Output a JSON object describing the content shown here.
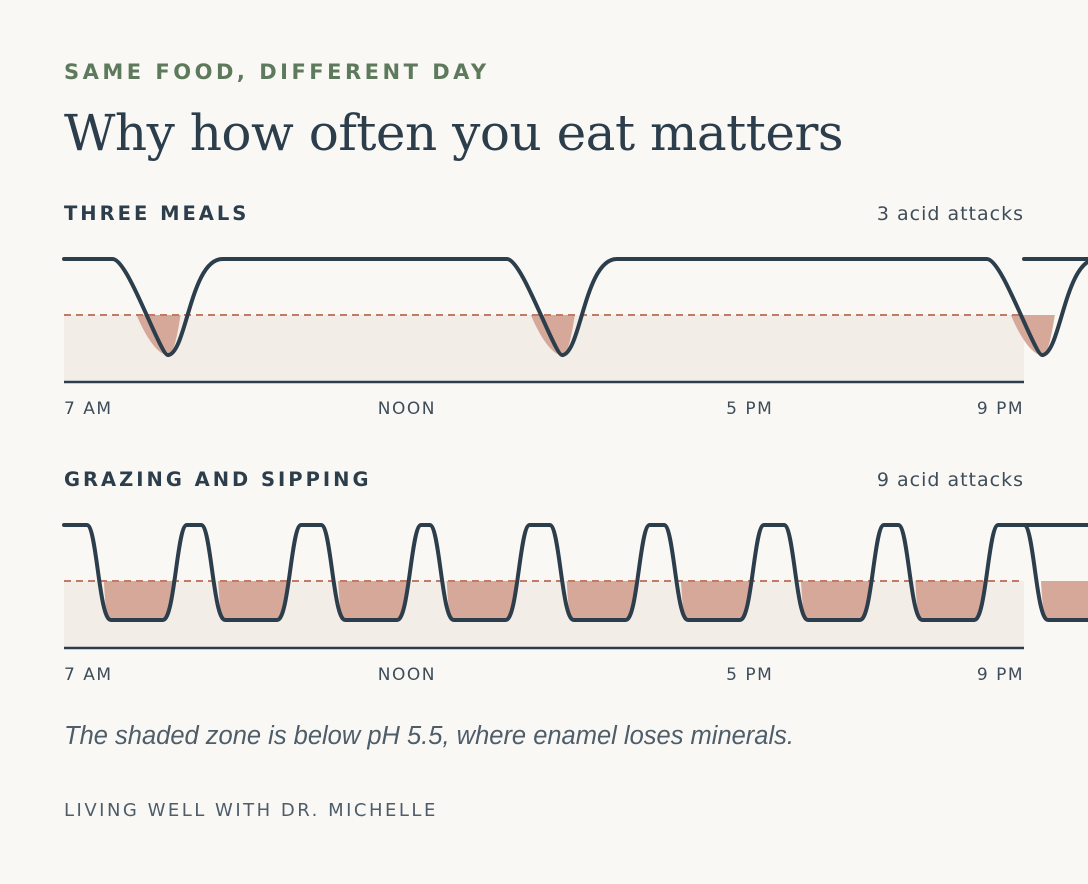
{
  "header": {
    "eyebrow": "SAME FOOD, DIFFERENT DAY",
    "title": "Why how often you eat matters"
  },
  "colors": {
    "line": "#2c3e4c",
    "threshold": "#c27a62",
    "acid_fill": "#d5a899",
    "zone_fill": "#f2ede7"
  },
  "chart_data": [
    {
      "type": "line",
      "title": "THREE MEALS",
      "count_label": "3 acid attacks",
      "x_ticks": [
        "7 AM",
        "NOON",
        "5 PM",
        "9 PM"
      ],
      "x_range": [
        "7 AM",
        "9 PM"
      ],
      "threshold_ph": 5.5,
      "attack_start_times": [
        "8:00 AM",
        "1:45 PM",
        "8:45 PM"
      ],
      "attack_shape": "narrow"
    },
    {
      "type": "line",
      "title": "GRAZING AND SIPPING",
      "count_label": "9 acid attacks",
      "x_ticks": [
        "7 AM",
        "NOON",
        "5 PM",
        "9 PM"
      ],
      "x_range": [
        "7 AM",
        "9 PM"
      ],
      "threshold_ph": 5.5,
      "attack_start_times": [
        "7:20 AM",
        "9:00 AM",
        "10:45 AM",
        "12:20 PM",
        "2:05 PM",
        "3:45 PM",
        "5:30 PM",
        "7:10 PM",
        "9:00 PM"
      ],
      "attack_shape": "wide"
    }
  ],
  "note": "The shaded zone is below pH 5.5, where enamel loses minerals.",
  "footer": "LIVING WELL WITH DR. MICHELLE"
}
